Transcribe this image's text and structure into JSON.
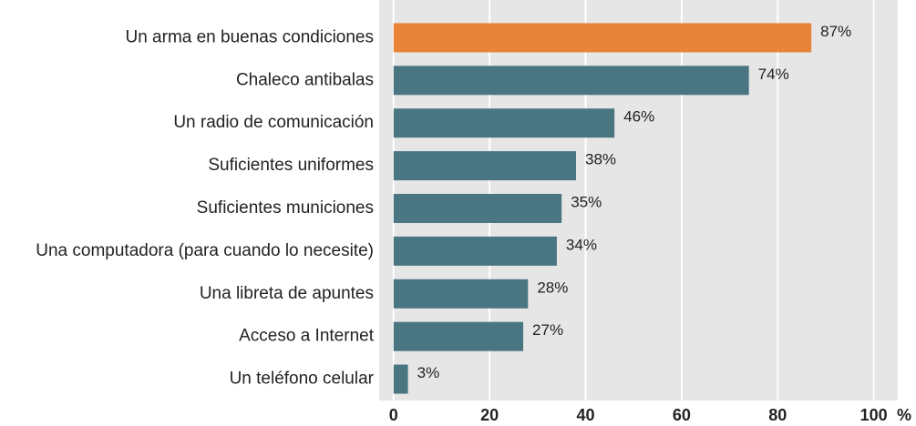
{
  "chart_data": {
    "type": "bar",
    "orientation": "horizontal",
    "categories": [
      "Un arma en buenas condiciones",
      "Chaleco antibalas",
      "Un radio de comunicación",
      "Suficientes uniformes",
      "Suficientes municiones",
      "Una computadora (para cuando lo necesite)",
      "Una libreta de apuntes",
      "Acceso a Internet",
      "Un teléfono celular"
    ],
    "values": [
      87,
      74,
      46,
      38,
      35,
      34,
      28,
      27,
      3
    ],
    "value_labels": [
      "87%",
      "74%",
      "46%",
      "38%",
      "35%",
      "34%",
      "28%",
      "27%",
      "3%"
    ],
    "colors": [
      "#e8833a",
      "#4a7682",
      "#4a7682",
      "#4a7682",
      "#4a7682",
      "#4a7682",
      "#4a7682",
      "#4a7682",
      "#4a7682"
    ],
    "xlabel": "%",
    "xlim": [
      -3,
      105
    ],
    "xticks": [
      0,
      20,
      40,
      60,
      80,
      100
    ],
    "grid": true
  }
}
